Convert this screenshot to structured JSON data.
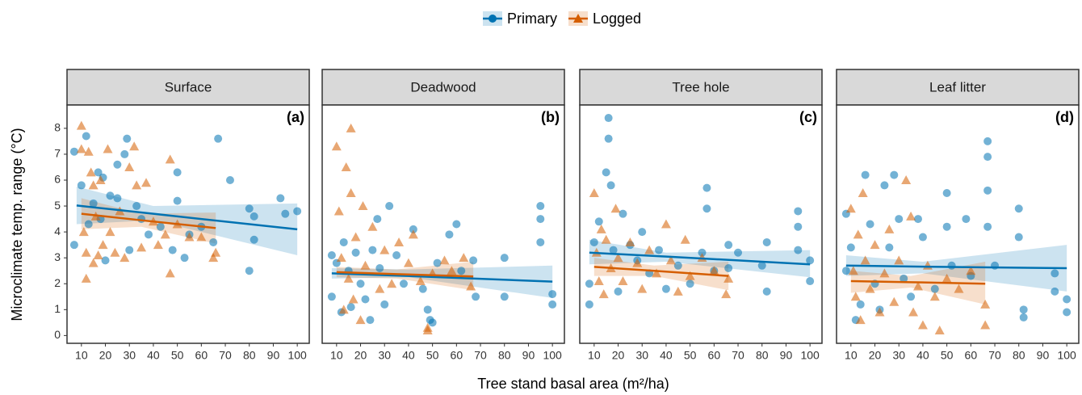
{
  "chart_data": [
    {
      "type": "scatter",
      "title": "Surface",
      "tag": "(a)",
      "xlabel": "Tree stand basal area (m²/ha)",
      "ylabel": "Microclimate temp. range (°C)",
      "legend": "top",
      "xlim": [
        4,
        105
      ],
      "ylim": [
        -0.3,
        8.9
      ],
      "xticks": [
        10,
        20,
        30,
        40,
        50,
        60,
        70,
        80,
        90,
        100
      ],
      "yticks": [
        0,
        1,
        2,
        3,
        4,
        5,
        6,
        7,
        8
      ],
      "grid": false,
      "series": [
        {
          "name": "Primary",
          "color": "#0072B2",
          "marker": "circle",
          "x": [
            7,
            7,
            10,
            12,
            13,
            15,
            17,
            18,
            19,
            20,
            22,
            25,
            25,
            28,
            29,
            30,
            33,
            35,
            38,
            43,
            48,
            50,
            50,
            53,
            55,
            60,
            65,
            67,
            72,
            80,
            80,
            82,
            93,
            95,
            100,
            82
          ],
          "values": [
            3.5,
            7.1,
            5.8,
            7.7,
            4.3,
            5.1,
            6.3,
            4.5,
            6.1,
            2.9,
            5.4,
            5.3,
            6.6,
            7.0,
            7.6,
            3.3,
            5.0,
            4.5,
            3.9,
            4.2,
            3.3,
            6.3,
            5.2,
            3.0,
            3.9,
            4.2,
            3.6,
            7.6,
            6.0,
            4.9,
            2.5,
            3.7,
            5.3,
            4.7,
            4.8,
            4.6
          ],
          "fit_x": [
            8,
            40,
            100
          ],
          "fit_y": [
            5.02,
            4.7,
            4.1
          ],
          "fit_lower": [
            4.3,
            4.45,
            3.1
          ],
          "fit_upper": [
            5.75,
            5.0,
            5.1
          ]
        },
        {
          "name": "Logged",
          "color": "#D55E00",
          "marker": "triangle",
          "x": [
            10,
            10,
            11,
            12,
            12,
            13,
            14,
            15,
            15,
            16,
            17,
            18,
            19,
            21,
            22,
            24,
            26,
            28,
            30,
            32,
            33,
            35,
            37,
            40,
            42,
            45,
            47,
            47,
            50,
            55,
            60,
            65,
            66
          ],
          "values": [
            8.1,
            7.2,
            4.0,
            2.2,
            3.2,
            7.1,
            6.3,
            2.8,
            5.8,
            4.6,
            3.1,
            6.0,
            3.5,
            7.2,
            4.0,
            3.2,
            4.8,
            3.0,
            6.5,
            7.3,
            5.8,
            3.4,
            5.9,
            4.4,
            3.5,
            3.9,
            6.8,
            2.4,
            4.3,
            3.8,
            3.8,
            3.0,
            3.2
          ],
          "fit_x": [
            10,
            35,
            66
          ],
          "fit_y": [
            4.7,
            4.45,
            4.15
          ],
          "fit_lower": [
            4.1,
            4.2,
            3.55
          ],
          "fit_upper": [
            5.3,
            4.7,
            4.75
          ]
        }
      ]
    },
    {
      "type": "scatter",
      "title": "Deadwood",
      "tag": "(b)",
      "xlim": [
        4,
        105
      ],
      "ylim": [
        -0.3,
        8.9
      ],
      "xticks": [
        10,
        20,
        30,
        40,
        50,
        60,
        70,
        80,
        90,
        100
      ],
      "yticks": [
        0,
        1,
        2,
        3,
        4,
        5,
        6,
        7,
        8
      ],
      "grid": false,
      "series": [
        {
          "name": "Primary",
          "color": "#0072B2",
          "marker": "circle",
          "x": [
            8,
            8,
            10,
            12,
            13,
            15,
            16,
            18,
            20,
            22,
            24,
            25,
            27,
            28,
            30,
            32,
            35,
            38,
            42,
            46,
            48,
            49,
            50,
            52,
            57,
            60,
            62,
            67,
            68,
            80,
            80,
            95,
            95,
            95,
            100,
            100
          ],
          "values": [
            3.1,
            1.5,
            2.8,
            0.9,
            3.6,
            2.5,
            1.1,
            3.2,
            2.0,
            1.4,
            0.6,
            3.3,
            4.5,
            2.6,
            1.2,
            5.0,
            3.1,
            2.0,
            4.1,
            1.8,
            1.0,
            0.6,
            0.5,
            2.8,
            3.9,
            4.3,
            2.5,
            2.9,
            1.5,
            3.0,
            1.5,
            5.0,
            4.5,
            3.6,
            1.2,
            1.6
          ],
          "fit_x": [
            8,
            40,
            100
          ],
          "fit_y": [
            2.4,
            2.3,
            2.08
          ],
          "fit_lower": [
            2.2,
            2.25,
            1.45
          ],
          "fit_upper": [
            2.6,
            2.55,
            2.7
          ]
        },
        {
          "name": "Logged",
          "color": "#D55E00",
          "marker": "triangle",
          "x": [
            10,
            11,
            12,
            13,
            14,
            15,
            16,
            16,
            17,
            18,
            20,
            21,
            22,
            25,
            28,
            30,
            33,
            36,
            40,
            42,
            45,
            48,
            48,
            50,
            55,
            58,
            63,
            66
          ],
          "values": [
            7.3,
            4.8,
            3.0,
            1.0,
            6.5,
            2.2,
            8.0,
            5.5,
            1.4,
            3.8,
            0.6,
            5.0,
            2.7,
            4.2,
            1.8,
            3.3,
            2.0,
            3.6,
            2.8,
            3.9,
            2.1,
            0.3,
            0.2,
            2.4,
            2.9,
            2.5,
            3.0,
            1.9
          ],
          "fit_x": [
            10,
            35,
            67
          ],
          "fit_y": [
            2.45,
            2.37,
            2.28
          ],
          "fit_lower": [
            2.25,
            2.2,
            1.75
          ],
          "fit_upper": [
            2.65,
            2.55,
            2.85
          ]
        }
      ]
    },
    {
      "type": "scatter",
      "title": "Tree hole",
      "tag": "(c)",
      "xlim": [
        4,
        105
      ],
      "ylim": [
        -0.3,
        8.9
      ],
      "xticks": [
        10,
        20,
        30,
        40,
        50,
        60,
        70,
        80,
        90,
        100
      ],
      "yticks": [
        0,
        1,
        2,
        3,
        4,
        5,
        6,
        7,
        8
      ],
      "grid": false,
      "series": [
        {
          "name": "Primary",
          "color": "#0072B2",
          "marker": "circle",
          "x": [
            8,
            8,
            10,
            12,
            15,
            16,
            16,
            17,
            18,
            20,
            22,
            25,
            28,
            30,
            33,
            37,
            40,
            45,
            50,
            55,
            57,
            57,
            60,
            66,
            66,
            70,
            80,
            82,
            82,
            95,
            95,
            95,
            100,
            100
          ],
          "values": [
            2.0,
            1.2,
            3.6,
            4.4,
            6.3,
            8.4,
            7.6,
            5.8,
            3.3,
            1.7,
            4.7,
            3.5,
            2.9,
            4.0,
            2.4,
            3.3,
            1.8,
            2.7,
            2.0,
            3.2,
            5.7,
            4.9,
            2.5,
            3.5,
            2.6,
            3.2,
            2.7,
            1.7,
            3.6,
            4.8,
            4.2,
            3.3,
            2.9,
            2.1
          ],
          "fit_x": [
            8,
            40,
            100
          ],
          "fit_y": [
            3.2,
            3.05,
            2.75
          ],
          "fit_lower": [
            2.75,
            2.85,
            2.25
          ],
          "fit_upper": [
            3.7,
            3.2,
            3.3
          ]
        },
        {
          "name": "Logged",
          "color": "#D55E00",
          "marker": "triangle",
          "x": [
            10,
            11,
            12,
            13,
            14,
            15,
            17,
            19,
            20,
            22,
            25,
            28,
            30,
            33,
            36,
            40,
            42,
            45,
            48,
            50,
            55,
            60,
            65,
            66
          ],
          "values": [
            5.5,
            3.2,
            2.1,
            4.1,
            1.6,
            3.7,
            2.6,
            4.9,
            3.0,
            2.1,
            3.6,
            2.8,
            1.8,
            3.3,
            2.4,
            4.3,
            2.9,
            1.7,
            3.7,
            2.3,
            3.0,
            2.5,
            1.6,
            2.2
          ],
          "fit_x": [
            10,
            35,
            66
          ],
          "fit_y": [
            2.65,
            2.5,
            2.3
          ],
          "fit_lower": [
            2.3,
            2.3,
            1.75
          ],
          "fit_upper": [
            3.0,
            2.7,
            2.85
          ]
        }
      ]
    },
    {
      "type": "scatter",
      "title": "Leaf litter",
      "tag": "(d)",
      "xlim": [
        4,
        105
      ],
      "ylim": [
        -0.3,
        8.9
      ],
      "xticks": [
        10,
        20,
        30,
        40,
        50,
        60,
        70,
        80,
        90,
        100
      ],
      "yticks": [
        0,
        1,
        2,
        3,
        4,
        5,
        6,
        7,
        8
      ],
      "grid": false,
      "series": [
        {
          "name": "Primary",
          "color": "#0072B2",
          "marker": "circle",
          "x": [
            8,
            8,
            10,
            12,
            14,
            16,
            18,
            20,
            22,
            24,
            26,
            28,
            30,
            32,
            35,
            38,
            40,
            45,
            50,
            50,
            52,
            58,
            60,
            67,
            67,
            67,
            67,
            70,
            80,
            80,
            82,
            82,
            95,
            95,
            100,
            100
          ],
          "values": [
            4.7,
            2.5,
            3.4,
            0.6,
            1.2,
            6.2,
            4.3,
            2.0,
            1.0,
            5.8,
            3.4,
            6.2,
            4.5,
            2.2,
            1.5,
            4.5,
            3.8,
            1.8,
            5.5,
            4.2,
            2.7,
            4.5,
            2.3,
            7.5,
            6.9,
            5.6,
            4.2,
            2.7,
            4.9,
            3.8,
            1.0,
            0.7,
            2.4,
            1.7,
            1.4,
            0.9
          ],
          "fit_x": [
            8,
            40,
            100
          ],
          "fit_y": [
            2.7,
            2.66,
            2.6
          ],
          "fit_lower": [
            2.3,
            2.4,
            1.7
          ],
          "fit_upper": [
            3.1,
            2.85,
            3.5
          ]
        },
        {
          "name": "Logged",
          "color": "#D55E00",
          "marker": "triangle",
          "x": [
            10,
            11,
            12,
            13,
            14,
            15,
            16,
            18,
            20,
            22,
            24,
            26,
            28,
            30,
            33,
            35,
            36,
            38,
            40,
            42,
            45,
            47,
            50,
            55,
            60,
            66,
            66
          ],
          "values": [
            4.9,
            2.5,
            1.5,
            3.9,
            0.6,
            5.5,
            2.9,
            1.8,
            3.5,
            0.9,
            2.4,
            4.1,
            1.3,
            2.9,
            6.0,
            4.6,
            0.9,
            1.9,
            0.4,
            2.7,
            1.5,
            0.2,
            2.2,
            1.8,
            2.5,
            1.2,
            0.4
          ],
          "fit_x": [
            10,
            35,
            66
          ],
          "fit_y": [
            2.1,
            2.06,
            2.0
          ],
          "fit_lower": [
            1.65,
            1.85,
            1.2
          ],
          "fit_upper": [
            2.5,
            2.3,
            2.85
          ]
        }
      ]
    }
  ]
}
